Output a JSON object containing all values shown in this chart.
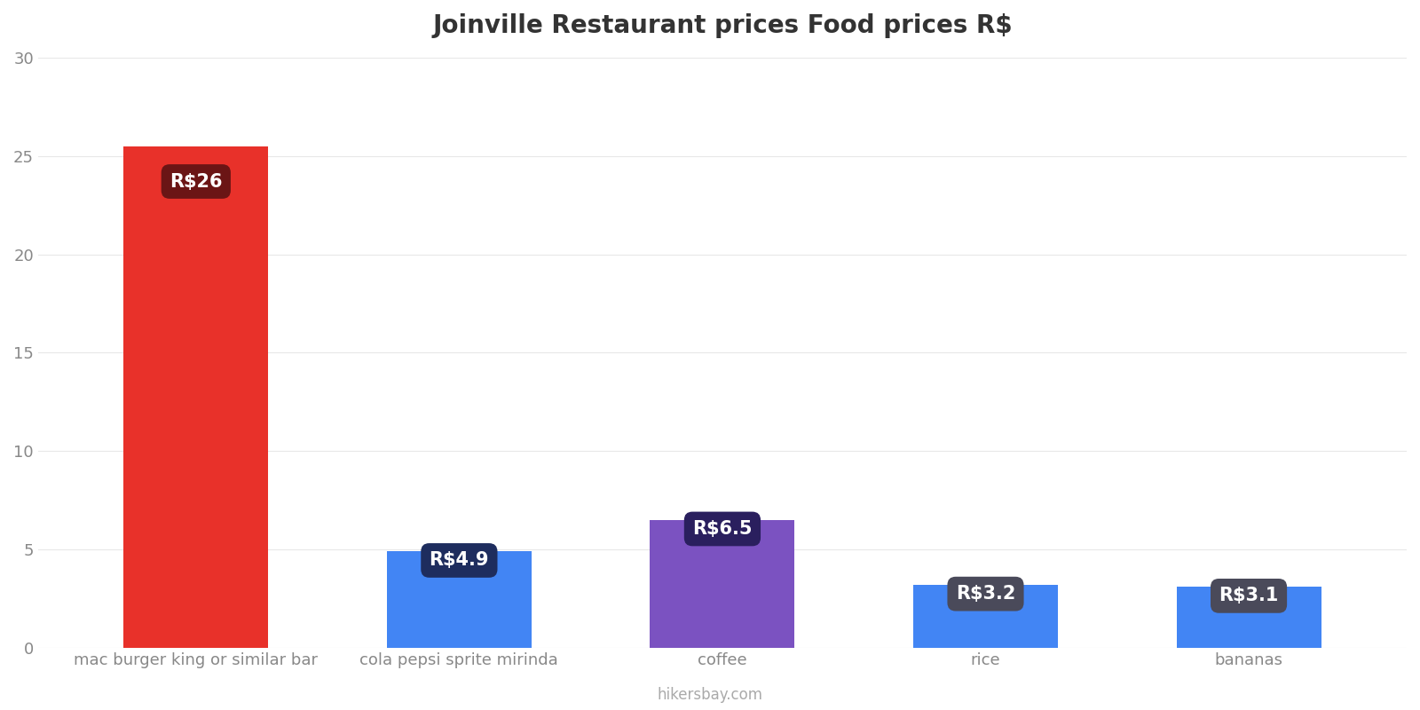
{
  "title": "Joinville Restaurant prices Food prices R$",
  "categories": [
    "mac burger king or similar bar",
    "cola pepsi sprite mirinda",
    "coffee",
    "rice",
    "bananas"
  ],
  "values": [
    25.5,
    4.9,
    6.5,
    3.2,
    3.1
  ],
  "labels": [
    "R$26",
    "R$4.9",
    "R$6.5",
    "R$3.2",
    "R$3.1"
  ],
  "bar_colors": [
    "#e8312a",
    "#4285f4",
    "#7b52c1",
    "#4285f4",
    "#4285f4"
  ],
  "label_bg_colors": [
    "#6b1515",
    "#1e2d5e",
    "#2a1f5e",
    "#4a4a5a",
    "#4a4a5a"
  ],
  "ylim": [
    0,
    30
  ],
  "yticks": [
    0,
    5,
    10,
    15,
    20,
    25,
    30
  ],
  "background_color": "#ffffff",
  "title_fontsize": 20,
  "tick_fontsize": 13,
  "label_fontsize": 15,
  "watermark": "hikersbay.com"
}
